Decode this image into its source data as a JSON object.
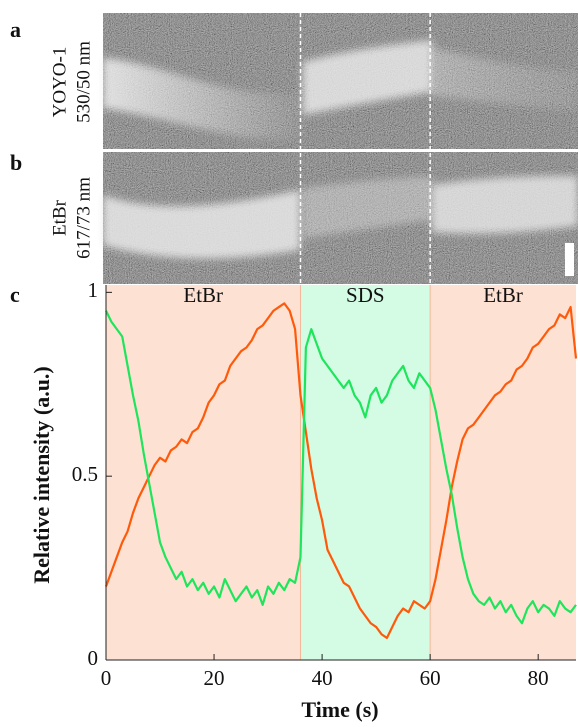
{
  "kymographs": [
    {
      "letter": "a",
      "label_lines": [
        "YOYO-1",
        "530/50 nm"
      ]
    },
    {
      "letter": "b",
      "label_lines": [
        "EtBr",
        "617/73 nm"
      ]
    }
  ],
  "chart_data": {
    "type": "line",
    "letter": "c",
    "xlabel": "Time (s)",
    "ylabel": "Relative intensity (a.u.)",
    "xlim": [
      0,
      87
    ],
    "ylim": [
      0,
      1.02
    ],
    "xticks": [
      0,
      20,
      40,
      60,
      80
    ],
    "yticks": [
      0,
      0.5,
      1
    ],
    "regions": [
      {
        "label": "EtBr",
        "start": 0,
        "end": 36,
        "color": "#fde1d2"
      },
      {
        "label": "SDS",
        "start": 36,
        "end": 60,
        "color": "#d4fbe4"
      },
      {
        "label": "EtBr",
        "start": 60,
        "end": 87,
        "color": "#fde1d2"
      }
    ],
    "x": [
      0,
      1,
      2,
      3,
      4,
      5,
      6,
      7,
      8,
      9,
      10,
      11,
      12,
      13,
      14,
      15,
      16,
      17,
      18,
      19,
      20,
      21,
      22,
      23,
      24,
      25,
      26,
      27,
      28,
      29,
      30,
      31,
      32,
      33,
      34,
      35,
      36,
      37,
      38,
      39,
      40,
      41,
      42,
      43,
      44,
      45,
      46,
      47,
      48,
      49,
      50,
      51,
      52,
      53,
      54,
      55,
      56,
      57,
      58,
      59,
      60,
      61,
      62,
      63,
      64,
      65,
      66,
      67,
      68,
      69,
      70,
      71,
      72,
      73,
      74,
      75,
      76,
      77,
      78,
      79,
      80,
      81,
      82,
      83,
      84,
      85,
      86,
      87
    ],
    "series": [
      {
        "color": "#ff5a0a",
        "values": [
          0.2,
          0.24,
          0.28,
          0.32,
          0.35,
          0.4,
          0.44,
          0.47,
          0.5,
          0.53,
          0.55,
          0.54,
          0.57,
          0.58,
          0.6,
          0.59,
          0.62,
          0.63,
          0.66,
          0.7,
          0.72,
          0.75,
          0.76,
          0.8,
          0.82,
          0.84,
          0.85,
          0.87,
          0.9,
          0.91,
          0.93,
          0.95,
          0.96,
          0.97,
          0.95,
          0.9,
          0.72,
          0.62,
          0.52,
          0.44,
          0.38,
          0.3,
          0.27,
          0.24,
          0.21,
          0.2,
          0.17,
          0.14,
          0.12,
          0.1,
          0.09,
          0.07,
          0.06,
          0.09,
          0.12,
          0.14,
          0.13,
          0.16,
          0.15,
          0.14,
          0.16,
          0.22,
          0.3,
          0.38,
          0.47,
          0.54,
          0.6,
          0.63,
          0.64,
          0.66,
          0.68,
          0.7,
          0.72,
          0.73,
          0.75,
          0.76,
          0.79,
          0.8,
          0.82,
          0.85,
          0.86,
          0.88,
          0.9,
          0.91,
          0.94,
          0.93,
          0.96,
          0.82
        ]
      },
      {
        "color": "#1ee55c",
        "values": [
          0.95,
          0.92,
          0.9,
          0.88,
          0.8,
          0.72,
          0.65,
          0.56,
          0.48,
          0.4,
          0.32,
          0.28,
          0.25,
          0.22,
          0.24,
          0.2,
          0.22,
          0.19,
          0.21,
          0.18,
          0.2,
          0.17,
          0.22,
          0.19,
          0.16,
          0.18,
          0.2,
          0.17,
          0.19,
          0.15,
          0.2,
          0.18,
          0.21,
          0.19,
          0.22,
          0.21,
          0.28,
          0.85,
          0.9,
          0.86,
          0.82,
          0.8,
          0.78,
          0.76,
          0.74,
          0.76,
          0.72,
          0.7,
          0.66,
          0.72,
          0.74,
          0.7,
          0.72,
          0.76,
          0.78,
          0.8,
          0.76,
          0.74,
          0.78,
          0.76,
          0.74,
          0.68,
          0.6,
          0.52,
          0.45,
          0.36,
          0.28,
          0.22,
          0.18,
          0.16,
          0.15,
          0.17,
          0.14,
          0.16,
          0.13,
          0.15,
          0.12,
          0.1,
          0.14,
          0.16,
          0.13,
          0.15,
          0.14,
          0.12,
          0.16,
          0.14,
          0.13,
          0.15
        ]
      }
    ]
  }
}
